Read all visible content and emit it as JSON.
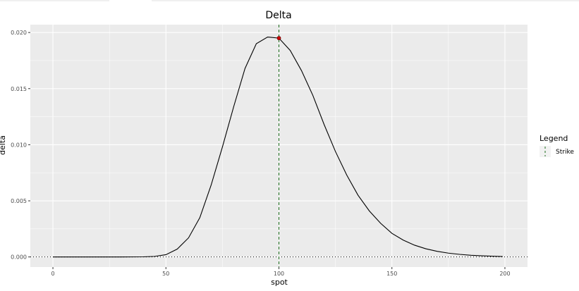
{
  "chart_data": {
    "type": "line",
    "title": "Delta",
    "xlabel": "spot",
    "ylabel": "delta",
    "xlim": [
      -10,
      210
    ],
    "ylim": [
      -0.0009,
      0.0207
    ],
    "xticks": [
      0,
      50,
      100,
      150,
      200
    ],
    "xtick_labels": [
      "0",
      "50",
      "100",
      "150",
      "200"
    ],
    "yticks": [
      0.0,
      0.005,
      0.01,
      0.015,
      0.02
    ],
    "ytick_labels": [
      "0.000",
      "0.005",
      "0.010",
      "0.015",
      "0.020"
    ],
    "series": [
      {
        "color": "#000000",
        "x": [
          0,
          10,
          20,
          30,
          40,
          45,
          50,
          55,
          60,
          65,
          70,
          75,
          80,
          85,
          90,
          95,
          100,
          105,
          110,
          115,
          120,
          125,
          130,
          135,
          140,
          145,
          150,
          155,
          160,
          165,
          170,
          175,
          180,
          185,
          190,
          195,
          199
        ],
        "y": [
          0.0,
          0.0,
          0.0,
          0.0,
          1e-05,
          5e-05,
          0.0002,
          0.0007,
          0.0017,
          0.0035,
          0.0064,
          0.0098,
          0.0134,
          0.0168,
          0.019,
          0.0196,
          0.0195,
          0.0184,
          0.0166,
          0.0144,
          0.0118,
          0.0094,
          0.0073,
          0.0055,
          0.0041,
          0.003,
          0.0021,
          0.0015,
          0.00105,
          0.00073,
          0.0005,
          0.00034,
          0.00023,
          0.00015,
          0.0001,
          6e-05,
          4e-05
        ]
      }
    ],
    "strike_x": 100,
    "marker": {
      "x": 100,
      "y": 0.0195,
      "color": "#cc0000"
    },
    "zero_line_y": 0,
    "grid": true,
    "legend": {
      "title": "Legend",
      "position": "right",
      "entries": [
        {
          "label": "Strike",
          "color": "#1a6b1a",
          "style": "dashed"
        }
      ]
    },
    "colors": {
      "panel": "#ebebeb",
      "grid": "#ffffff",
      "strike": "#1a6b1a"
    }
  }
}
